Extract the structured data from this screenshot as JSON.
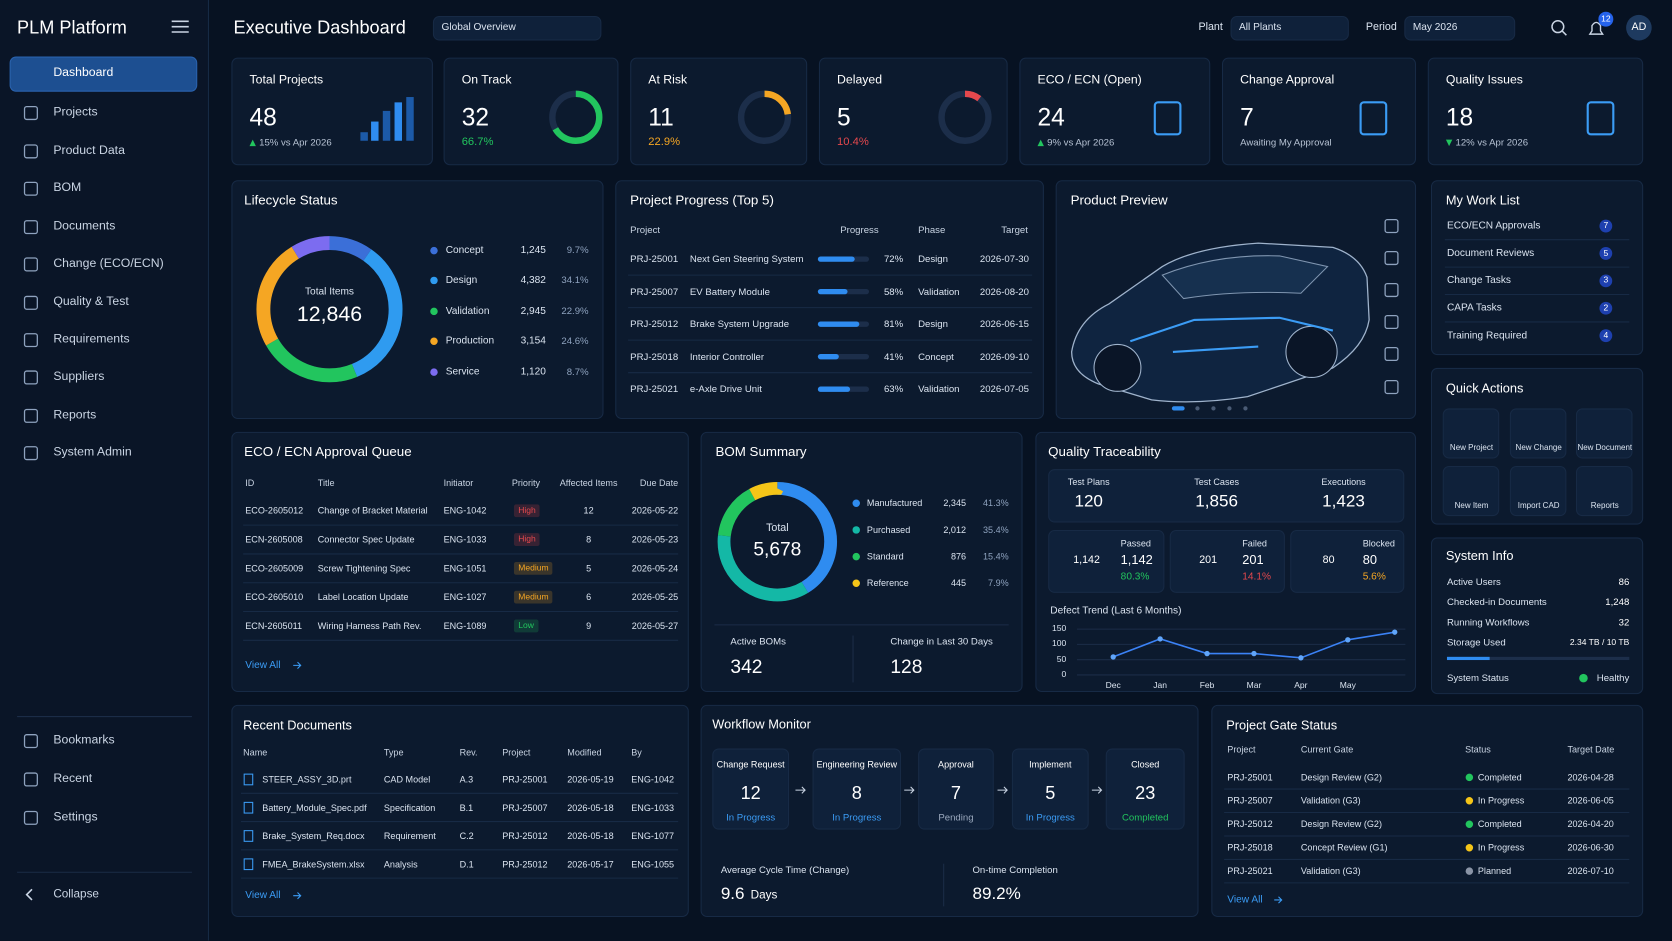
{
  "sidebar": {
    "title": "PLM Platform",
    "nav": [
      "Dashboard",
      "Projects",
      "Product Data",
      "BOM",
      "Documents",
      "Change (ECO/ECN)",
      "Quality & Test",
      "Requirements",
      "Suppliers",
      "Reports",
      "System Admin"
    ],
    "bottom": [
      "Bookmarks",
      "Recent",
      "Settings"
    ],
    "collapse": "Collapse"
  },
  "header": {
    "title": "Executive Dashboard",
    "view": "Global Overview",
    "plant_label": "Plant",
    "plant": "All Plants",
    "period_label": "Period",
    "period": "May 2026",
    "notifications": 12,
    "user": "AD"
  },
  "kpis": [
    {
      "label": "Total Projects",
      "value": 48,
      "trend": "up",
      "sub": "15% vs Apr 2026"
    },
    {
      "label": "On Track",
      "value": 32,
      "ring": 66.7,
      "ring_label": "66.7%",
      "color": "#22c55e"
    },
    {
      "label": "At Risk",
      "value": 11,
      "ring": 22.9,
      "ring_label": "22.9%",
      "color": "#f5a623"
    },
    {
      "label": "Delayed",
      "value": 5,
      "ring": 10.4,
      "ring_label": "10.4%",
      "color": "#e5484d"
    },
    {
      "label": "ECO / ECN (Open)",
      "value": 24,
      "trend": "up",
      "sub": "9% vs Apr 2026"
    },
    {
      "label": "Change Approval",
      "value": 7,
      "sub": "Awaiting My Approval"
    },
    {
      "label": "Quality Issues",
      "value": 18,
      "trend": "down",
      "sub": "12% vs Apr 2026"
    }
  ],
  "lifecycle": {
    "title": "Lifecycle Status",
    "center_label": "Total Items",
    "total": "12,846",
    "items": [
      {
        "name": "Concept",
        "count": "1,245",
        "pct": 9.7,
        "pct_label": "9.7%",
        "color": "#3b6fd8"
      },
      {
        "name": "Design",
        "count": "4,382",
        "pct": 34.1,
        "pct_label": "34.1%",
        "color": "#2f9bf0"
      },
      {
        "name": "Validation",
        "count": "2,945",
        "pct": 22.9,
        "pct_label": "22.9%",
        "color": "#22c55e"
      },
      {
        "name": "Production",
        "count": "3,154",
        "pct": 24.6,
        "pct_label": "24.6%",
        "color": "#f5a623"
      },
      {
        "name": "Service",
        "count": "1,120",
        "pct": 8.7,
        "pct_label": "8.7%",
        "color": "#7c6cf0"
      }
    ]
  },
  "projects": {
    "title": "Project Progress (Top 5)",
    "columns": [
      "Project",
      "Progress",
      "Phase",
      "Target"
    ],
    "rows": [
      {
        "id": "PRJ-25001",
        "name": "Next Gen Steering System",
        "progress": 72,
        "progress_label": "72%",
        "phase": "Design",
        "target": "2026-07-30"
      },
      {
        "id": "PRJ-25007",
        "name": "EV Battery Module",
        "progress": 58,
        "progress_label": "58%",
        "phase": "Validation",
        "target": "2026-08-20"
      },
      {
        "id": "PRJ-25012",
        "name": "Brake System Upgrade",
        "progress": 81,
        "progress_label": "81%",
        "phase": "Design",
        "target": "2026-06-15"
      },
      {
        "id": "PRJ-25018",
        "name": "Interior Controller",
        "progress": 41,
        "progress_label": "41%",
        "phase": "Concept",
        "target": "2026-09-10"
      },
      {
        "id": "PRJ-25021",
        "name": "e-Axle Drive Unit",
        "progress": 63,
        "progress_label": "63%",
        "phase": "Validation",
        "target": "2026-07-05"
      }
    ]
  },
  "preview": {
    "title": "Product Preview"
  },
  "worklist": {
    "title": "My Work List",
    "items": [
      {
        "label": "ECO/ECN Approvals",
        "count": 7
      },
      {
        "label": "Document Reviews",
        "count": 5
      },
      {
        "label": "Change Tasks",
        "count": 3
      },
      {
        "label": "CAPA Tasks",
        "count": 2
      },
      {
        "label": "Training Required",
        "count": 4
      }
    ]
  },
  "quick_actions": {
    "title": "Quick Actions",
    "items": [
      "New Project",
      "New Change",
      "New Document",
      "New Item",
      "Import CAD",
      "Reports"
    ]
  },
  "system": {
    "title": "System Info",
    "rows": [
      {
        "label": "Active Users",
        "value": "86"
      },
      {
        "label": "Checked-in Documents",
        "value": "1,248"
      },
      {
        "label": "Running Workflows",
        "value": "32"
      }
    ],
    "storage_label": "Storage Used",
    "storage": "2.34 TB / 10 TB",
    "used": 2.34,
    "capacity": 10,
    "status_label": "System Status",
    "status": "Healthy"
  },
  "eco": {
    "title": "ECO / ECN Approval Queue",
    "columns": [
      "ID",
      "Title",
      "Initiator",
      "Priority",
      "Affected Items",
      "Due Date"
    ],
    "rows": [
      [
        "ECO-2605012",
        "Change of Bracket Material",
        "ENG-1042",
        "High",
        12,
        "2026-05-22"
      ],
      [
        "ECN-2605008",
        "Connector Spec Update",
        "ENG-1033",
        "High",
        8,
        "2026-05-23"
      ],
      [
        "ECO-2605009",
        "Screw Tightening Spec",
        "ENG-1051",
        "Medium",
        5,
        "2026-05-24"
      ],
      [
        "ECO-2605010",
        "Label Location Update",
        "ENG-1027",
        "Medium",
        6,
        "2026-05-25"
      ],
      [
        "ECN-2605011",
        "Wiring Harness Path Rev.",
        "ENG-1089",
        "Low",
        9,
        "2026-05-27"
      ]
    ],
    "priority_colors": [
      "#e5484d",
      "#e5484d",
      "#f5a623",
      "#f5a623",
      "#22c55e"
    ],
    "view_all": "View All"
  },
  "bom": {
    "title": "BOM Summary",
    "center_label": "Total",
    "total": "5,678",
    "items": [
      {
        "name": "Manufactured",
        "count": "2,345",
        "pct": 41.3,
        "pct_label": "41.3%",
        "color": "#2f8cf0"
      },
      {
        "name": "Purchased",
        "count": "2,012",
        "pct": 35.4,
        "pct_label": "35.4%",
        "color": "#14b8a6"
      },
      {
        "name": "Standard",
        "count": "876",
        "pct": 15.4,
        "pct_label": "15.4%",
        "color": "#22c55e"
      },
      {
        "name": "Reference",
        "count": "445",
        "pct": 7.9,
        "pct_label": "7.9%",
        "color": "#f5c518"
      }
    ],
    "active_label": "Active BOMs",
    "active": 342,
    "change_label": "Change in Last 30 Days",
    "change": 128
  },
  "quality": {
    "title": "Quality Traceability",
    "stats": [
      {
        "label": "Test Plans",
        "value": "120"
      },
      {
        "label": "Test Cases",
        "value": "1,856"
      },
      {
        "label": "Executions",
        "value": "1,423"
      }
    ],
    "gauges": [
      {
        "label": "Passed",
        "count": "1,142",
        "pct": 80.3,
        "pct_label": "80.3%",
        "color": "#22c55e"
      },
      {
        "label": "Failed",
        "count": "201",
        "pct": 14.1,
        "pct_label": "14.1%",
        "color": "#e5484d"
      },
      {
        "label": "Blocked",
        "count": "80",
        "pct": 5.6,
        "pct_label": "5.6%",
        "color": "#f5a623"
      }
    ],
    "trend": {
      "type": "line",
      "title": "Defect Trend (Last 6 Months)",
      "categories": [
        "Dec",
        "Jan",
        "Feb",
        "Mar",
        "Apr",
        "May",
        null
      ],
      "values": [
        59,
        118,
        70,
        70,
        56,
        115,
        140
      ],
      "color": "#3b82f6",
      "ylim": [
        0,
        150
      ],
      "yticks": [
        0,
        50,
        100,
        150
      ]
    }
  },
  "docs": {
    "title": "Recent Documents",
    "columns": [
      "Name",
      "Type",
      "Rev.",
      "Project",
      "Modified",
      "By"
    ],
    "rows": [
      [
        "STEER_ASSY_3D.prt",
        "CAD Model",
        "A.3",
        "PRJ-25001",
        "2026-05-19",
        "ENG-1042"
      ],
      [
        "Battery_Module_Spec.pdf",
        "Specification",
        "B.1",
        "PRJ-25007",
        "2026-05-18",
        "ENG-1033"
      ],
      [
        "Brake_System_Req.docx",
        "Requirement",
        "C.2",
        "PRJ-25012",
        "2026-05-18",
        "ENG-1077"
      ],
      [
        "FMEA_BrakeSystem.xlsx",
        "Analysis",
        "D.1",
        "PRJ-25012",
        "2026-05-17",
        "ENG-1055"
      ]
    ],
    "view_all": "View All"
  },
  "workflow": {
    "title": "Workflow Monitor",
    "stages": [
      {
        "name": "Change Request",
        "count": 12,
        "status": "In Progress",
        "color": "#3b9cf5"
      },
      {
        "name": "Engineering Review",
        "count": 8,
        "status": "In Progress",
        "color": "#3b9cf5"
      },
      {
        "name": "Approval",
        "count": 7,
        "status": "Pending",
        "color": "#9aa8bd"
      },
      {
        "name": "Implement",
        "count": 5,
        "status": "In Progress",
        "color": "#3b9cf5"
      },
      {
        "name": "Closed",
        "count": 23,
        "status": "Completed",
        "color": "#22c55e"
      }
    ],
    "cycle_label": "Average Cycle Time (Change)",
    "cycle": "9.6",
    "cycle_unit": "Days",
    "ontime_label": "On-time Completion",
    "ontime": "89.2%"
  },
  "gates": {
    "title": "Project Gate Status",
    "columns": [
      "Project",
      "Current Gate",
      "Status",
      "Target Date"
    ],
    "rows": [
      [
        "PRJ-25001",
        "Design Review (G2)",
        "Completed",
        "2026-04-28"
      ],
      [
        "PRJ-25007",
        "Validation (G3)",
        "In Progress",
        "2026-06-05"
      ],
      [
        "PRJ-25012",
        "Design Review (G2)",
        "Completed",
        "2026-04-20"
      ],
      [
        "PRJ-25018",
        "Concept Review (G1)",
        "In Progress",
        "2026-06-30"
      ],
      [
        "PRJ-25021",
        "Validation (G3)",
        "Planned",
        "2026-07-10"
      ]
    ],
    "status_colors": [
      "#22c55e",
      "#f5c518",
      "#22c55e",
      "#f5c518",
      "#8a94a6"
    ],
    "view_all": "View All"
  }
}
